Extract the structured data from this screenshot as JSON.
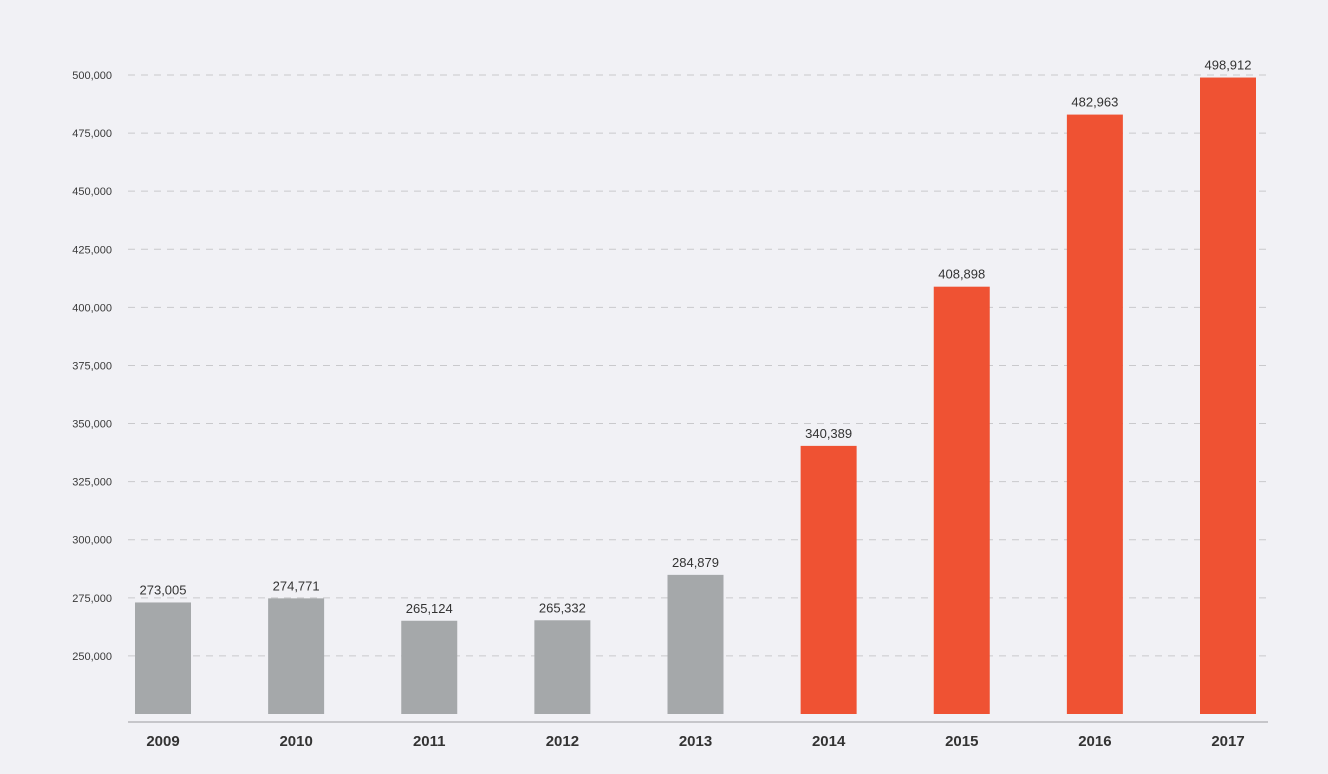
{
  "chart_data": {
    "type": "bar",
    "title": "",
    "xlabel": "",
    "ylabel": "",
    "categories": [
      "2009",
      "2010",
      "2011",
      "2012",
      "2013",
      "2014",
      "2015",
      "2016",
      "2017"
    ],
    "values": [
      273005,
      274771,
      265124,
      265332,
      284879,
      340389,
      408898,
      482963,
      498912
    ],
    "data_labels": [
      "273,005",
      "274,771",
      "265,124",
      "265,332",
      "284,879",
      "340,389",
      "408,898",
      "482,963",
      "498,912"
    ],
    "ylim": [
      225000,
      500000
    ],
    "yticks": [
      250000,
      275000,
      300000,
      325000,
      350000,
      375000,
      400000,
      425000,
      450000,
      475000,
      500000
    ],
    "ytick_labels": [
      "250,000",
      "275,000",
      "300,000",
      "325,000",
      "350,000",
      "375,000",
      "400,000",
      "425,000",
      "450,000",
      "475,000",
      "500,000"
    ],
    "grid": true,
    "grid_style": "dashed",
    "legend": "none",
    "bar_colors": [
      "#a5a8aa",
      "#a5a8aa",
      "#a5a8aa",
      "#a5a8aa",
      "#a5a8aa",
      "#ef5233",
      "#ef5233",
      "#ef5233",
      "#ef5233"
    ],
    "colors": {
      "background": "#f1f1f5",
      "gray_bar": "#a5a8aa",
      "accent_bar": "#ef5233",
      "grid": "#c9c9cc",
      "axis": "#9a9a9e"
    }
  }
}
